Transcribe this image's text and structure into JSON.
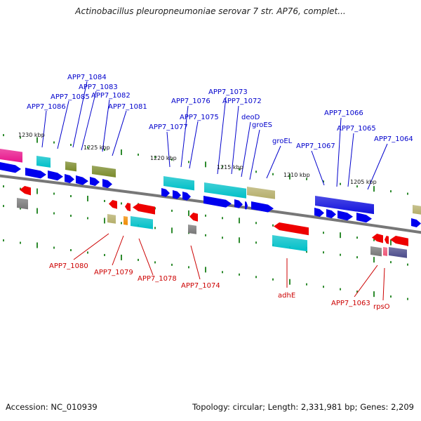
{
  "title": "Actinobacillus pleuropneumoniae serovar 7 str. AP76, complet...",
  "footer": {
    "accession": "Accession: NC_010939",
    "topology": "Topology: circular; Length: 2,331,981 bp; Genes: 2,209"
  },
  "colors": {
    "forward_label": "#0000cc",
    "reverse_label": "#cc0000",
    "backbone": "#777777",
    "tick": "#2e8b2e",
    "cds_forward": "#0000ee",
    "cds_reverse": "#ee0000",
    "cog_teal": "#00c0c8",
    "cog_olive": "#7a8a2a",
    "cog_khaki": "#b5ae6a",
    "cog_magenta": "#e8168c",
    "cog_gray": "#777777",
    "cog_blue": "#1010dd",
    "cog_orange": "#f08a00",
    "cog_navy": "#4a4a8a",
    "rna_pink": "#ee5577"
  },
  "scale_labels": [
    "1230 kbp",
    "1225 kbp",
    "1220 kbp",
    "1215 kbp",
    "1210 kbp",
    "1205 kbp"
  ],
  "forward_gene_labels": [
    "APP7_1086",
    "APP7_1085",
    "APP7_1084",
    "APP7_1083",
    "APP7_1082",
    "APP7_1081",
    "APP7_1077",
    "APP7_1076",
    "APP7_1075",
    "APP7_1073",
    "APP7_1072",
    "deoD",
    "groES",
    "groEL",
    "APP7_1067",
    "APP7_1066",
    "APP7_1065",
    "APP7_1064"
  ],
  "reverse_gene_labels": [
    "APP7_1080",
    "APP7_1079",
    "APP7_1078",
    "APP7_1074",
    "adhE",
    "APP7_1063",
    "rpsO"
  ]
}
